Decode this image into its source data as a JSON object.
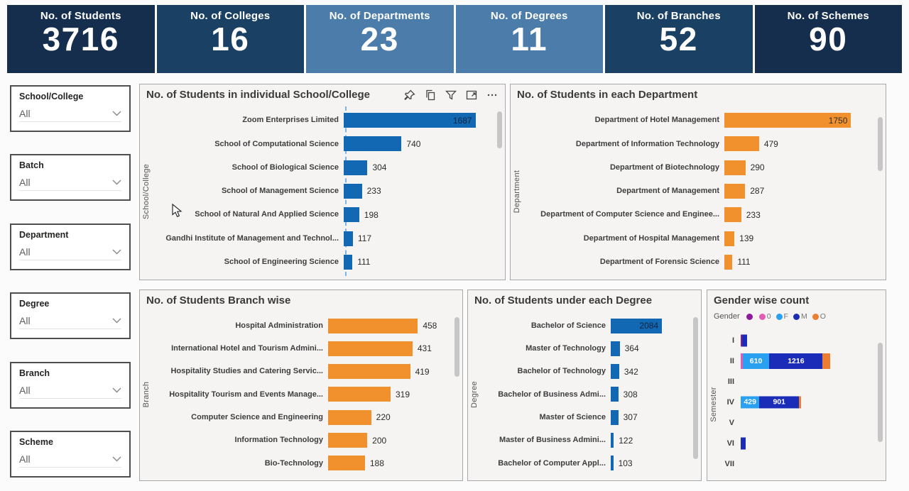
{
  "kpis": [
    {
      "label": "No. of Students",
      "value": "3716",
      "color": "#152E4D"
    },
    {
      "label": "No. of Colleges",
      "value": "16",
      "color": "#1A4063"
    },
    {
      "label": "No. of Departments",
      "value": "23",
      "color": "#4C7CA9"
    },
    {
      "label": "No. of Degrees",
      "value": "11",
      "color": "#4C7CA9"
    },
    {
      "label": "No. of Branches",
      "value": "52",
      "color": "#1A4063"
    },
    {
      "label": "No. of Schemes",
      "value": "90",
      "color": "#152E4D"
    }
  ],
  "filters": [
    {
      "label": "School/College",
      "value": "All"
    },
    {
      "label": "Batch",
      "value": "All"
    },
    {
      "label": "Department",
      "value": "All"
    },
    {
      "label": "Degree",
      "value": "All"
    },
    {
      "label": "Branch",
      "value": "All"
    },
    {
      "label": "Scheme",
      "value": "All"
    }
  ],
  "toolbar": {
    "icons": [
      "pin",
      "copy",
      "filter",
      "focus-mode",
      "more-options"
    ]
  },
  "charts": {
    "school_college": {
      "type": "bar",
      "title": "No. of Students in individual School/College",
      "axis_label": "School/College",
      "bar_color": "#1268B3",
      "xmax": 1900,
      "rows": [
        {
          "label": "Zoom Enterprises Limited",
          "value": 1687,
          "value_inside": true
        },
        {
          "label": "School of Computational Science",
          "value": 740
        },
        {
          "label": "School of Biological Science",
          "value": 304
        },
        {
          "label": "School of Management Science",
          "value": 233
        },
        {
          "label": "School of Natural And Applied Science",
          "value": 198
        },
        {
          "label": "Gandhi Institute of Management and Technol...",
          "value": 117
        },
        {
          "label": "School of Engineering Science",
          "value": 111
        }
      ]
    },
    "department": {
      "type": "bar",
      "title": "No. of Students in each Department",
      "axis_label": "Department",
      "bar_color": "#F0912D",
      "xmax": 2050,
      "rows": [
        {
          "label": "Department of Hotel Management",
          "value": 1750,
          "value_inside": true
        },
        {
          "label": "Department of Information Technology",
          "value": 479
        },
        {
          "label": "Department of Biotechnology",
          "value": 290
        },
        {
          "label": "Department of Management",
          "value": 287
        },
        {
          "label": "Department of Computer Science and Enginee...",
          "value": 233
        },
        {
          "label": "Department of Hospital Management",
          "value": 139
        },
        {
          "label": "Department of Forensic Science",
          "value": 111
        }
      ]
    },
    "branch": {
      "type": "bar",
      "title": "No. of Students Branch wise",
      "axis_label": "Branch",
      "bar_color": "#F0912D",
      "xmax": 620,
      "rows": [
        {
          "label": "Hospital Administration",
          "value": 458
        },
        {
          "label": "International Hotel and Tourism Admini...",
          "value": 431
        },
        {
          "label": "Hospitality Studies and Catering Servic...",
          "value": 419
        },
        {
          "label": "Hospitality Tourism and Events Manage...",
          "value": 319
        },
        {
          "label": "Computer Science and Engineering",
          "value": 220
        },
        {
          "label": "Information Technology",
          "value": 200
        },
        {
          "label": "Bio-Technology",
          "value": 188
        }
      ]
    },
    "degree": {
      "type": "bar",
      "title": "No. of Students under each Degree",
      "axis_label": "Degree",
      "bar_color": "#1268B3",
      "xmax": 3150,
      "rows": [
        {
          "label": "Bachelor of Science",
          "value": 2084,
          "value_inside": true
        },
        {
          "label": "Master of Technology",
          "value": 364
        },
        {
          "label": "Bachelor of Technology",
          "value": 342
        },
        {
          "label": "Bachelor of Business Admi...",
          "value": 308
        },
        {
          "label": "Master of Science",
          "value": 307
        },
        {
          "label": "Master of Business Admini...",
          "value": 122
        },
        {
          "label": "Bachelor of Computer Appl...",
          "value": 103
        }
      ]
    },
    "gender": {
      "type": "stacked-bar",
      "title": "Gender wise count",
      "axis_label": "Semester",
      "xmax": 3000,
      "legend": {
        "title": "Gender",
        "items": [
          {
            "label": "",
            "color": "#8A1C9C"
          },
          {
            "label": "0",
            "color": "#E25CB6"
          },
          {
            "label": "F",
            "color": "#2AA0F0"
          },
          {
            "label": "M",
            "color": "#1B2DB8"
          },
          {
            "label": "O",
            "color": "#ED7D31"
          }
        ]
      },
      "categories": [
        "I",
        "II",
        "III",
        "IV",
        "V",
        "VI",
        "VII"
      ],
      "rows": [
        {
          "label": "I",
          "segments": [
            {
              "gender": "",
              "value": 30
            },
            {
              "gender": "M",
              "value": 115
            }
          ]
        },
        {
          "label": "II",
          "segments": [
            {
              "gender": "0",
              "value": 45
            },
            {
              "gender": "F",
              "value": 610,
              "show_value": true
            },
            {
              "gender": "M",
              "value": 1216,
              "show_value": true
            },
            {
              "gender": "O",
              "value": 165
            }
          ]
        },
        {
          "label": "III",
          "segments": []
        },
        {
          "label": "IV",
          "segments": [
            {
              "gender": "F",
              "value": 429,
              "show_value": true
            },
            {
              "gender": "M",
              "value": 901,
              "show_value": true
            },
            {
              "gender": "O",
              "value": 45
            }
          ]
        },
        {
          "label": "V",
          "segments": []
        },
        {
          "label": "VI",
          "segments": [
            {
              "gender": "M",
              "value": 110
            }
          ]
        },
        {
          "label": "VII",
          "segments": []
        }
      ]
    }
  }
}
